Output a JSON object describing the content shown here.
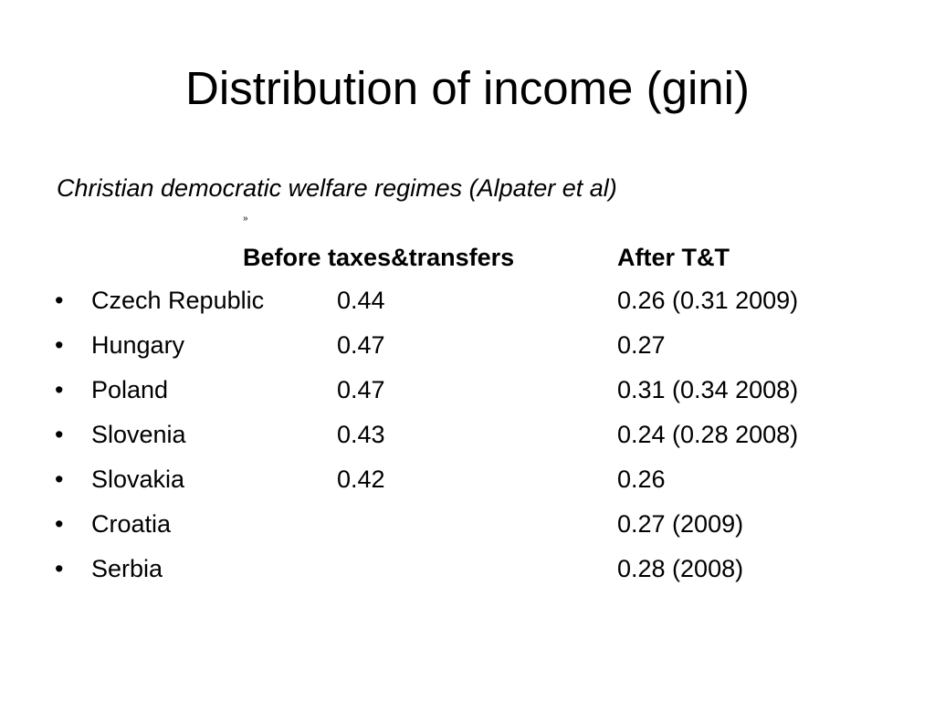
{
  "slide": {
    "title": "Distribution of income (gini)",
    "subtitle": "Christian democratic welfare regimes (Alpater et al)",
    "marker": "»",
    "header": {
      "before": "Before taxes&transfers",
      "after": "After T&T"
    },
    "bullet": "•",
    "rows": [
      {
        "country": "Czech Republic",
        "before": "0.44",
        "after": "0.26 (0.31 2009)"
      },
      {
        "country": "Hungary",
        "before": "0.47",
        "after": "0.27"
      },
      {
        "country": "Poland",
        "before": "0.47",
        "after": "0.31 (0.34 2008)"
      },
      {
        "country": "Slovenia",
        "before": "0.43",
        "after": "0.24 (0.28 2008)"
      },
      {
        "country": "Slovakia",
        "before": "0.42",
        "after": "0.26"
      },
      {
        "country": "Croatia",
        "before": "",
        "after": "0.27 (2009)"
      },
      {
        "country": "Serbia",
        "before": "",
        "after": "0.28 (2008)"
      }
    ]
  }
}
